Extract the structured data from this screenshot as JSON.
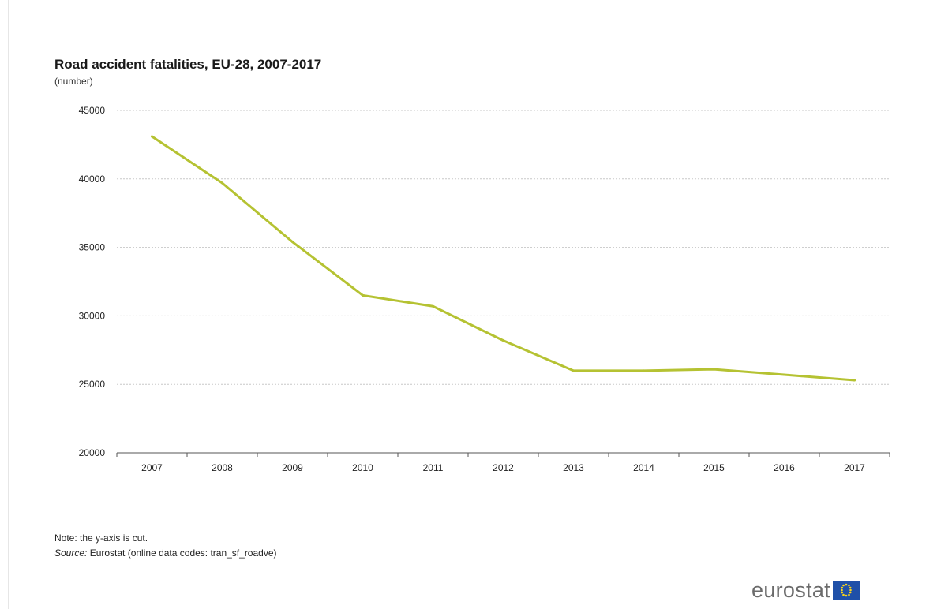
{
  "chart_data": {
    "type": "line",
    "title": "Road accident fatalities,  EU-28, 2007-2017",
    "subtitle": "(number)",
    "categories": [
      "2007",
      "2008",
      "2009",
      "2010",
      "2011",
      "2012",
      "2013",
      "2014",
      "2015",
      "2016",
      "2017"
    ],
    "series": [
      {
        "values": [
          43100,
          39700,
          35400,
          31500,
          30700,
          28200,
          26000,
          26000,
          26100,
          25700,
          25300
        ]
      }
    ],
    "ylim": [
      20000,
      45000
    ],
    "yticks": [
      "20000",
      "25000",
      "30000",
      "35000",
      "40000",
      "45000"
    ],
    "grid": true,
    "line_color": "#b5c232"
  },
  "footer": {
    "note": "Note: the y-axis is cut.",
    "source_label": "Source:",
    "source_text": " Eurostat (online data codes: tran_sf_roadve)"
  },
  "logo": {
    "text": "eurostat",
    "icon": "eu-flag-icon"
  }
}
